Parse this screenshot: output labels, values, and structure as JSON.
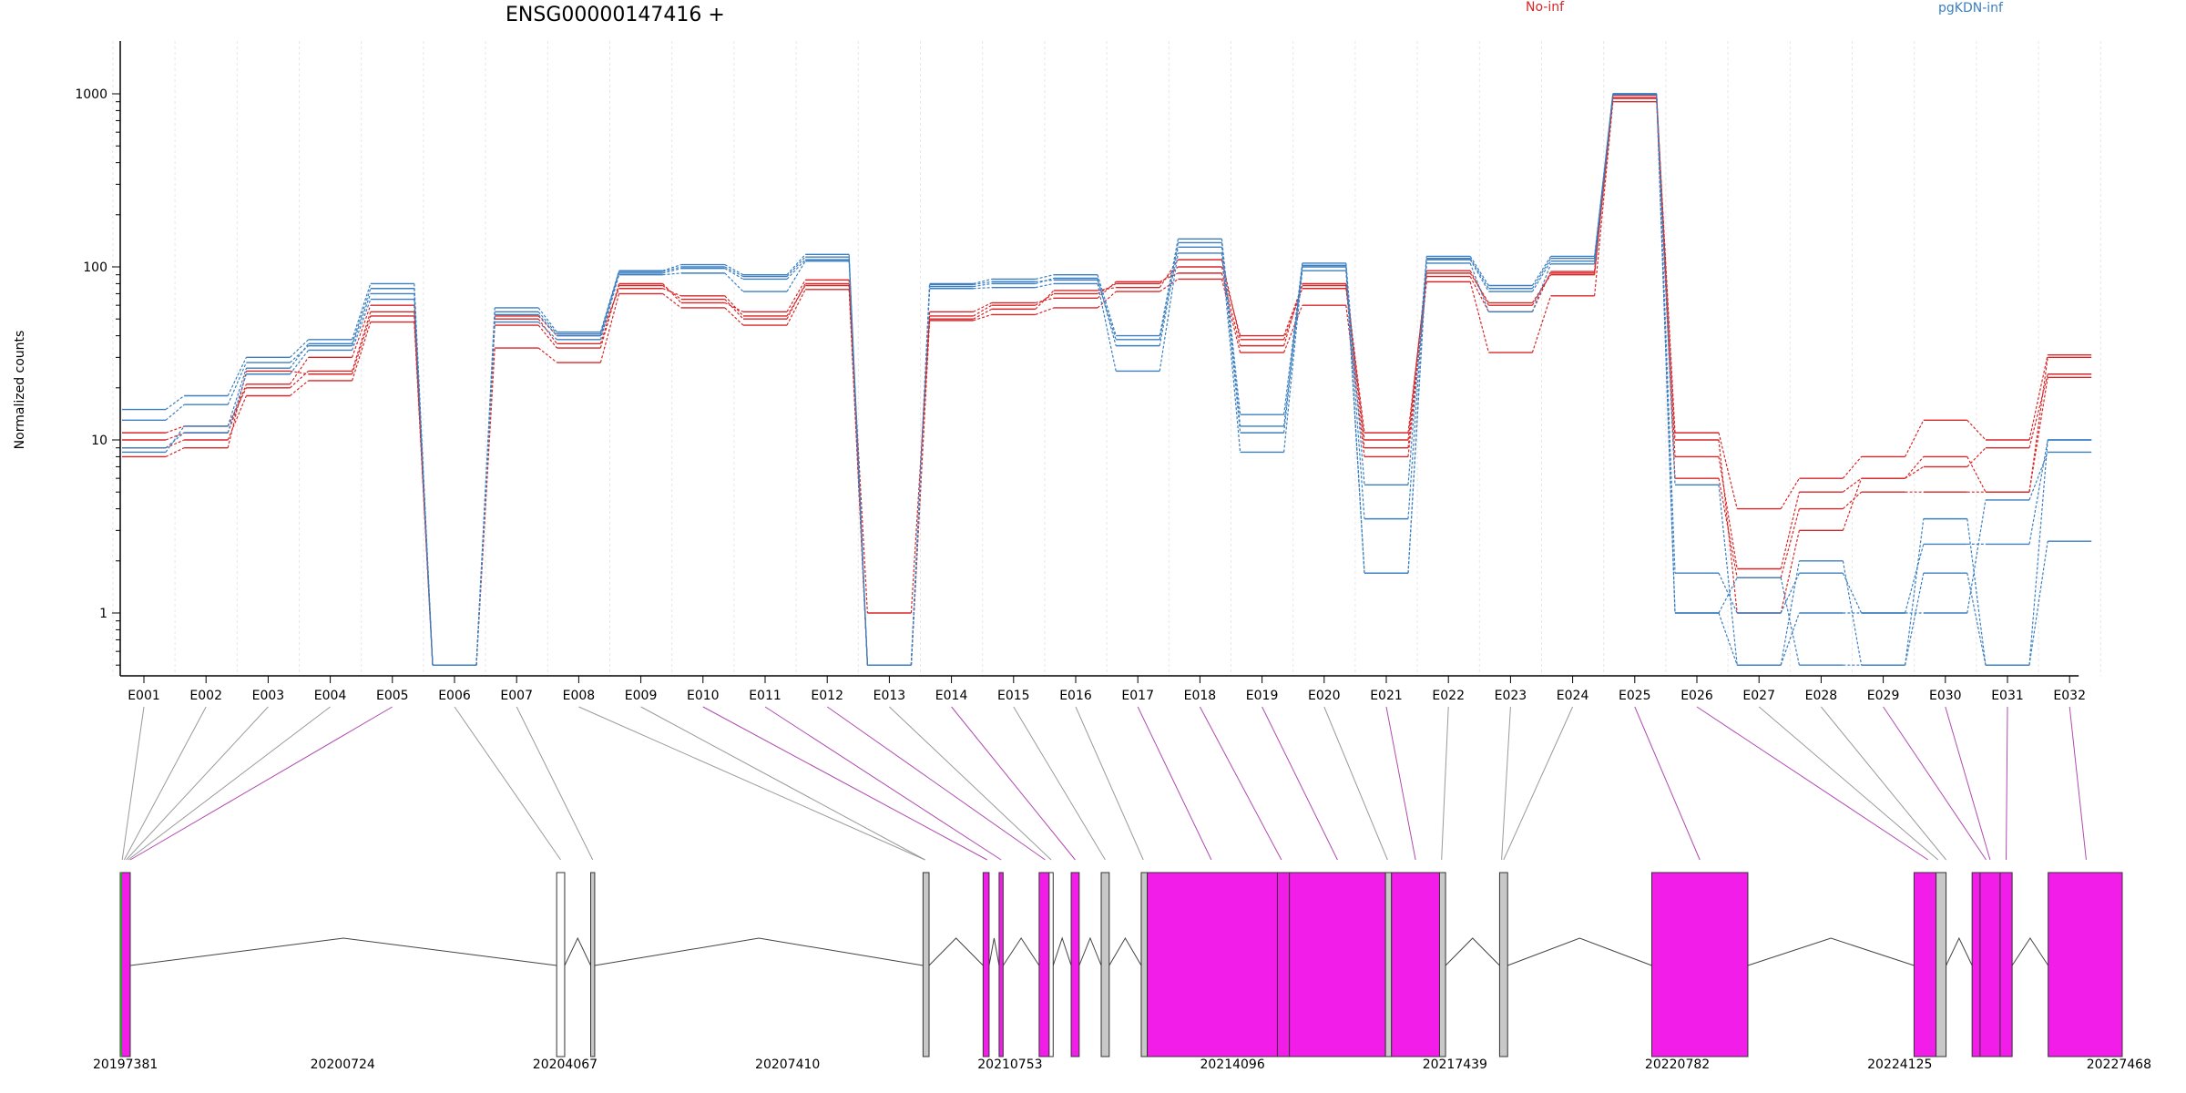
{
  "chart_data": {
    "type": "line",
    "title": "ENSG00000147416 +",
    "ylabel": "Normalized counts",
    "yscale": "log",
    "ylim": [
      0.5,
      1200
    ],
    "yticks": [
      1,
      10,
      100,
      1000
    ],
    "ytick_labels": [
      "1",
      "10",
      "100",
      "1000"
    ],
    "categories": [
      "E001",
      "E002",
      "E003",
      "E004",
      "E005",
      "E006",
      "E007",
      "E008",
      "E009",
      "E010",
      "E011",
      "E012",
      "E013",
      "E014",
      "E015",
      "E016",
      "E017",
      "E018",
      "E019",
      "E020",
      "E021",
      "E022",
      "E023",
      "E024",
      "E025",
      "E026",
      "E027",
      "E028",
      "E029",
      "E030",
      "E031",
      "E032"
    ],
    "legend": [
      {
        "label": "No-inf",
        "color": "#d62728"
      },
      {
        "label": "pgKDN-inf",
        "color": "#3b7fc0"
      }
    ],
    "series": [
      {
        "group": "No-inf",
        "color": "#d62728",
        "values": [
          11,
          12,
          20,
          25,
          55,
          0.5,
          50,
          36,
          78,
          65,
          50,
          80,
          1,
          52,
          60,
          70,
          80,
          100,
          40,
          78,
          10,
          95,
          60,
          92,
          950,
          11,
          4,
          6,
          8,
          13,
          10,
          31
        ]
      },
      {
        "group": "No-inf",
        "color": "#d62728",
        "values": [
          9,
          10,
          18,
          22,
          48,
          0.5,
          34,
          28,
          70,
          58,
          46,
          74,
          0.5,
          49,
          53,
          58,
          72,
          85,
          32,
          60,
          8,
          82,
          32,
          68,
          900,
          6,
          1.6,
          4,
          5,
          5,
          5,
          23
        ]
      },
      {
        "group": "No-inf",
        "color": "#d62728",
        "values": [
          10,
          11,
          21,
          30,
          60,
          0.5,
          46,
          34,
          80,
          62,
          55,
          84,
          0.5,
          55,
          62,
          66,
          82,
          92,
          35,
          80,
          11,
          88,
          55,
          94,
          980,
          8,
          1.8,
          5,
          6,
          7,
          9,
          24
        ]
      },
      {
        "group": "No-inf",
        "color": "#d62728",
        "values": [
          8,
          9,
          25,
          24,
          52,
          0.5,
          52,
          40,
          75,
          68,
          52,
          78,
          0.5,
          50,
          57,
          73,
          76,
          110,
          38,
          75,
          9,
          92,
          62,
          90,
          940,
          10,
          1,
          3,
          6,
          8,
          5,
          30
        ]
      },
      {
        "group": "pgKDN-inf",
        "color": "#3b7fc0",
        "values": [
          15,
          18,
          30,
          38,
          80,
          0.5,
          58,
          42,
          95,
          103,
          90,
          118,
          0.5,
          80,
          85,
          90,
          40,
          145,
          14,
          105,
          5.5,
          115,
          78,
          115,
          1000,
          5.5,
          0.5,
          2,
          0.5,
          3.5,
          0.5,
          10
        ]
      },
      {
        "group": "pgKDN-inf",
        "color": "#3b7fc0",
        "values": [
          13,
          16,
          28,
          35,
          70,
          0.5,
          53,
          40,
          92,
          98,
          85,
          110,
          0.5,
          77,
          80,
          86,
          35,
          130,
          11,
          100,
          3.5,
          110,
          72,
          108,
          1000,
          1.7,
          1,
          1.7,
          1,
          2.5,
          2.5,
          10
        ]
      },
      {
        "group": "pgKDN-inf",
        "color": "#3b7fc0",
        "values": [
          9,
          11,
          24,
          33,
          65,
          0.5,
          48,
          38,
          90,
          92,
          72,
          108,
          0.5,
          75,
          76,
          80,
          25,
          120,
          8.5,
          95,
          1.7,
          105,
          55,
          104,
          990,
          1,
          0.5,
          1,
          1,
          1,
          4.5,
          8.5
        ]
      },
      {
        "group": "pgKDN-inf",
        "color": "#3b7fc0",
        "values": [
          8.5,
          12,
          26,
          36,
          75,
          0.5,
          55,
          41,
          94,
          100,
          88,
          114,
          0.5,
          79,
          82,
          84,
          38,
          138,
          12,
          102,
          1.7,
          112,
          75,
          112,
          1000,
          1,
          1.6,
          0.5,
          0.5,
          1.7,
          0.5,
          2.6
        ]
      }
    ],
    "gene_model": {
      "coord_labels": [
        "20197381",
        "20200724",
        "20204067",
        "20207410",
        "20210753",
        "20214096",
        "20217439",
        "20220782",
        "20224125",
        "20227468"
      ],
      "highlight_color": "#f21de8",
      "neutral_color": "#c8c8c8"
    }
  }
}
